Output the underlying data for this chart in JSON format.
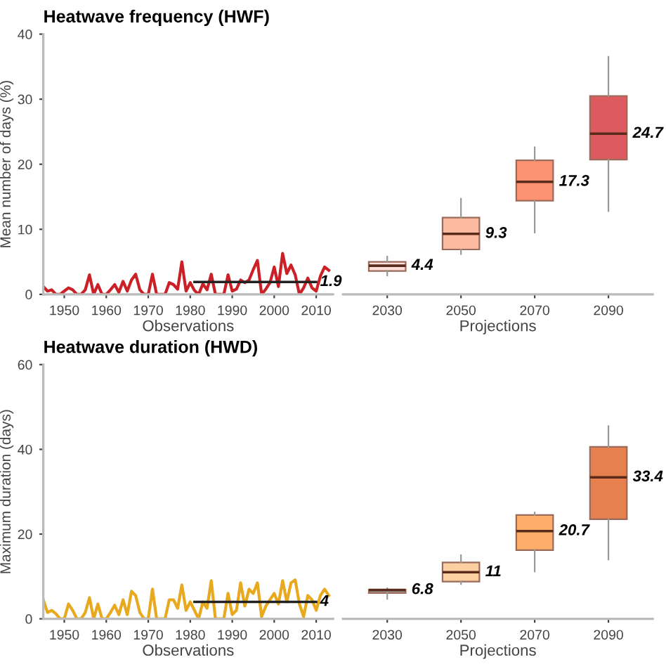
{
  "chart_data": [
    {
      "type": "line",
      "title": "Heatwave frequency (HWF)",
      "xlabel": "Observations",
      "ylabel": "Mean number of days (%)",
      "xlim": [
        1945,
        2014
      ],
      "xticks": [
        1950,
        1960,
        1970,
        1980,
        1990,
        2000,
        2010
      ],
      "ylim": [
        0,
        40
      ],
      "yticks": [
        0,
        10,
        20,
        30,
        40
      ],
      "grid": false,
      "series": [
        {
          "color": "#cc2027",
          "x": [
            1945,
            1946,
            1947,
            1948,
            1949,
            1950,
            1951,
            1952,
            1953,
            1954,
            1955,
            1956,
            1957,
            1958,
            1959,
            1960,
            1961,
            1962,
            1963,
            1964,
            1965,
            1966,
            1967,
            1968,
            1969,
            1970,
            1971,
            1972,
            1973,
            1974,
            1975,
            1976,
            1977,
            1978,
            1979,
            1980,
            1981,
            1982,
            1983,
            1984,
            1985,
            1986,
            1987,
            1988,
            1989,
            1990,
            1991,
            1992,
            1993,
            1994,
            1995,
            1996,
            1997,
            1998,
            1999,
            2000,
            2001,
            2002,
            2003,
            2004,
            2005,
            2006,
            2007,
            2008,
            2009,
            2010,
            2011,
            2012,
            2013
          ],
          "values": [
            1.2,
            0.5,
            0.7,
            0,
            0,
            0.5,
            1.0,
            0.7,
            0,
            0,
            0.7,
            3.0,
            0,
            1.5,
            0,
            0,
            0.7,
            1.5,
            0.3,
            2.0,
            0.5,
            2.2,
            3.1,
            0.7,
            0,
            0,
            3.1,
            0,
            0,
            0,
            1.8,
            1.5,
            0.8,
            5.0,
            0.5,
            1.8,
            0.6,
            0,
            1.6,
            0.7,
            3.1,
            0,
            0,
            0,
            3.0,
            0.5,
            0.8,
            2.2,
            1.8,
            2.2,
            3.8,
            5.2,
            0,
            0.8,
            1.8,
            4.2,
            1.2,
            6.3,
            3.2,
            4.5,
            3.0,
            0,
            1.0,
            2.5,
            1.0,
            0.5,
            2.8,
            4.2,
            3.7
          ]
        },
        {
          "type": "line",
          "color": "#222222",
          "x": [
            1981,
            2010
          ],
          "values": [
            1.9,
            1.9
          ]
        }
      ],
      "annotations": [
        {
          "text": "1.9",
          "x": 2010,
          "y": 1.9
        }
      ]
    },
    {
      "type": "box",
      "xlabel": "Projections",
      "categories": [
        "2030",
        "2050",
        "2070",
        "2090"
      ],
      "ylim": [
        0,
        40
      ],
      "tick_labels": "x",
      "grid": false,
      "colors": [
        "#fde0dd",
        "#fcbba1",
        "#fc9272",
        "#dd5a5e"
      ],
      "boxes": [
        {
          "low": 2.9,
          "q1": 3.6,
          "median": 4.4,
          "q3": 5.0,
          "high": 5.8
        },
        {
          "low": 6.2,
          "q1": 6.9,
          "median": 9.3,
          "q3": 11.8,
          "high": 14.7
        },
        {
          "low": 9.5,
          "q1": 14.4,
          "median": 17.3,
          "q3": 20.6,
          "high": 22.6
        },
        {
          "low": 12.8,
          "q1": 20.7,
          "median": 24.7,
          "q3": 30.5,
          "high": 36.5
        }
      ],
      "annotations": [
        {
          "text": "4.4",
          "x": "2030",
          "y": 4.4
        },
        {
          "text": "9.3",
          "x": "2050",
          "y": 9.3
        },
        {
          "text": "17.3",
          "x": "2070",
          "y": 17.3
        },
        {
          "text": "24.7",
          "x": "2090",
          "y": 24.7
        }
      ]
    },
    {
      "type": "line",
      "title": "Heatwave duration (HWD)",
      "xlabel": "Observations",
      "ylabel": "Maximum duration (days)",
      "xlim": [
        1945,
        2014
      ],
      "xticks": [
        1950,
        1960,
        1970,
        1980,
        1990,
        2000,
        2010
      ],
      "ylim": [
        0,
        60
      ],
      "yticks": [
        0,
        20,
        40,
        60
      ],
      "grid": false,
      "series": [
        {
          "color": "#e8a91e",
          "x": [
            1945,
            1946,
            1947,
            1948,
            1949,
            1950,
            1951,
            1952,
            1953,
            1954,
            1955,
            1956,
            1957,
            1958,
            1959,
            1960,
            1961,
            1962,
            1963,
            1964,
            1965,
            1966,
            1967,
            1968,
            1969,
            1970,
            1971,
            1972,
            1973,
            1974,
            1975,
            1976,
            1977,
            1978,
            1979,
            1980,
            1981,
            1982,
            1983,
            1984,
            1985,
            1986,
            1987,
            1988,
            1989,
            1990,
            1991,
            1992,
            1993,
            1994,
            1995,
            1996,
            1997,
            1998,
            1999,
            2000,
            2001,
            2002,
            2003,
            2004,
            2005,
            2006,
            2007,
            2008,
            2009,
            2010,
            2011,
            2012,
            2013
          ],
          "values": [
            4.5,
            1.5,
            2.0,
            1.2,
            0,
            0,
            3.5,
            2.0,
            0,
            0,
            1.5,
            5.0,
            0,
            3.5,
            0,
            0,
            1.5,
            3.2,
            1.0,
            4.5,
            1.0,
            6.5,
            5.5,
            1.5,
            0,
            0,
            7.0,
            0,
            0,
            0,
            4.5,
            4.5,
            2.5,
            8.0,
            2.0,
            4.0,
            2.0,
            0,
            4.0,
            2.5,
            9.0,
            0,
            0,
            0,
            6.0,
            1.0,
            2.0,
            8.5,
            3.0,
            7.0,
            6.0,
            8.5,
            0.5,
            3.0,
            4.5,
            6.0,
            3.5,
            9.0,
            4.0,
            8.5,
            9.2,
            3.5,
            0.5,
            5.5,
            4.5,
            2.0,
            5.5,
            7.0,
            5.5
          ]
        },
        {
          "type": "line",
          "color": "#222222",
          "x": [
            1981,
            2010
          ],
          "values": [
            4,
            4
          ]
        }
      ],
      "annotations": [
        {
          "text": "4",
          "x": 2010,
          "y": 4
        }
      ]
    },
    {
      "type": "box",
      "xlabel": "Projections",
      "categories": [
        "2030",
        "2050",
        "2070",
        "2090"
      ],
      "ylim": [
        0,
        60
      ],
      "tick_labels": "x",
      "grid": false,
      "colors": [
        "#a6a6a6",
        "#fdd0a2",
        "#fdae6b",
        "#e6804e"
      ],
      "boxes": [
        {
          "low": 4.7,
          "q1": 6.1,
          "median": 6.8,
          "q3": 6.9,
          "high": 7.2
        },
        {
          "low": 8.2,
          "q1": 8.8,
          "median": 11,
          "q3": 13.3,
          "high": 15.0
        },
        {
          "low": 11.2,
          "q1": 16.2,
          "median": 20.7,
          "q3": 24.5,
          "high": 25.1
        },
        {
          "low": 14.0,
          "q1": 23.5,
          "median": 33.4,
          "q3": 40.6,
          "high": 45.5
        }
      ],
      "annotations": [
        {
          "text": "6.8",
          "x": "2030",
          "y": 6.8
        },
        {
          "text": "11",
          "x": "2050",
          "y": 11
        },
        {
          "text": "20.7",
          "x": "2070",
          "y": 20.7
        },
        {
          "text": "33.4",
          "x": "2090",
          "y": 33.4
        }
      ]
    }
  ]
}
